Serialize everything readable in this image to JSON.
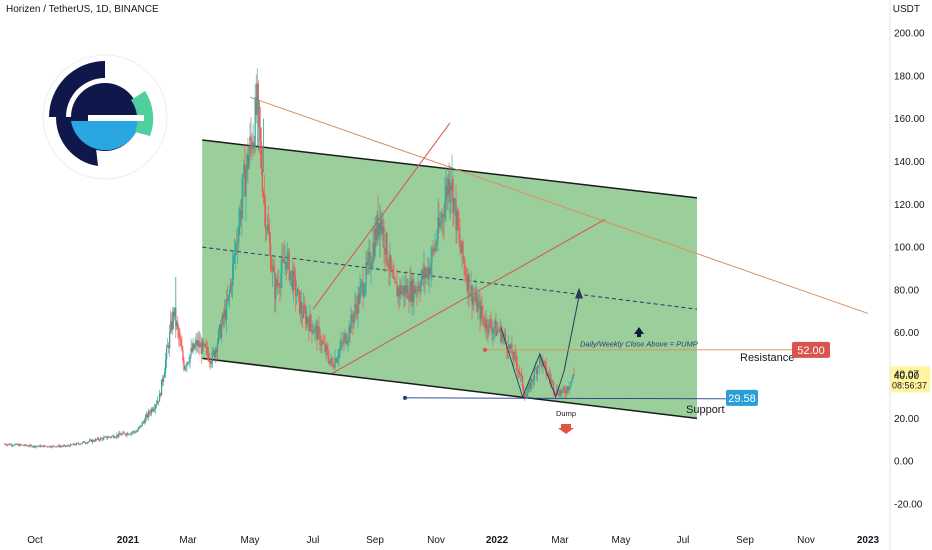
{
  "header": {
    "symbol_title": "Horizen / TetherUS, 1D, BINANCE",
    "currency": "USDT"
  },
  "colors": {
    "channel_fill": "#8fc98f",
    "channel_line": "#1b1b1b",
    "bull_candle": "#26a69a",
    "bear_candle": "#ef5350",
    "trendline_orange": "#d8905e",
    "trendline_red": "#d9534f",
    "resistance_badge": "#d9534f",
    "support_badge": "#2a9fd6",
    "price_badge": "#fff59d"
  },
  "chart_data": {
    "type": "candlestick",
    "title": "Horizen / TetherUS, 1D, BINANCE",
    "ylabel": "USDT",
    "ylim": [
      -30,
      210
    ],
    "y_ticks": [
      "200.00",
      "180.00",
      "160.00",
      "140.00",
      "120.00",
      "100.00",
      "80.00",
      "60.00",
      "40.00",
      "20.00",
      "0.00",
      "-20.00"
    ],
    "x_ticks": [
      "Oct",
      "2021",
      "Mar",
      "May",
      "Jul",
      "Sep",
      "Nov",
      "2022",
      "Mar",
      "May",
      "Jul",
      "Sep",
      "Nov",
      "2023"
    ],
    "x_tick_dates": [
      "2020-10-01",
      "2021-01-01",
      "2021-03-01",
      "2021-05-01",
      "2021-07-01",
      "2021-09-01",
      "2021-11-01",
      "2022-01-01",
      "2022-03-01",
      "2022-05-01",
      "2022-07-01",
      "2022-09-01",
      "2022-11-01",
      "2023-01-01"
    ],
    "price_series": [
      [
        "2020-09-01",
        8
      ],
      [
        "2020-10-01",
        7
      ],
      [
        "2020-11-01",
        7
      ],
      [
        "2020-12-01",
        10
      ],
      [
        "2020-12-20",
        12
      ],
      [
        "2021-01-10",
        14
      ],
      [
        "2021-02-01",
        30
      ],
      [
        "2021-02-15",
        70
      ],
      [
        "2021-02-25",
        45
      ],
      [
        "2021-03-10",
        55
      ],
      [
        "2021-03-25",
        48
      ],
      [
        "2021-04-10",
        75
      ],
      [
        "2021-04-25",
        130
      ],
      [
        "2021-05-08",
        165
      ],
      [
        "2021-05-15",
        120
      ],
      [
        "2021-05-25",
        80
      ],
      [
        "2021-06-05",
        95
      ],
      [
        "2021-06-20",
        70
      ],
      [
        "2021-07-05",
        60
      ],
      [
        "2021-07-20",
        45
      ],
      [
        "2021-08-05",
        60
      ],
      [
        "2021-08-25",
        90
      ],
      [
        "2021-09-06",
        115
      ],
      [
        "2021-09-20",
        80
      ],
      [
        "2021-10-10",
        80
      ],
      [
        "2021-10-25",
        90
      ],
      [
        "2021-11-05",
        110
      ],
      [
        "2021-11-15",
        135
      ],
      [
        "2021-11-25",
        100
      ],
      [
        "2021-12-05",
        80
      ],
      [
        "2021-12-20",
        65
      ],
      [
        "2022-01-05",
        60
      ],
      [
        "2022-01-20",
        45
      ],
      [
        "2022-01-28",
        30
      ],
      [
        "2022-02-10",
        48
      ],
      [
        "2022-02-25",
        33
      ],
      [
        "2022-03-05",
        32
      ],
      [
        "2022-03-15",
        40
      ]
    ],
    "channel": {
      "upper": [
        [
          "2021-03-15",
          150
        ],
        [
          "2022-07-15",
          123
        ]
      ],
      "lower": [
        [
          "2021-03-15",
          48
        ],
        [
          "2022-07-15",
          20
        ]
      ],
      "midline": [
        [
          "2021-03-15",
          100
        ],
        [
          "2022-07-15",
          71
        ]
      ]
    },
    "trendlines": [
      {
        "from": [
          "2021-05-01",
          170
        ],
        "to": [
          "2023-01-01",
          69
        ],
        "color": "orange"
      },
      {
        "from": [
          "2021-07-01",
          71
        ],
        "to": [
          "2021-11-15",
          158
        ],
        "color": "red"
      },
      {
        "from": [
          "2021-07-20",
          41
        ],
        "to": [
          "2022-04-15",
          113
        ],
        "color": "red"
      }
    ],
    "levels": [
      {
        "label": "Resistance",
        "value": "52.00",
        "price": 52
      },
      {
        "label": "Support",
        "value": "29.58",
        "price": 29.58
      }
    ],
    "current_price": "40.07",
    "current_time": "08:56:37",
    "annotations": [
      "Daily/Weekly Close Above = PUMP",
      "Dump"
    ]
  }
}
